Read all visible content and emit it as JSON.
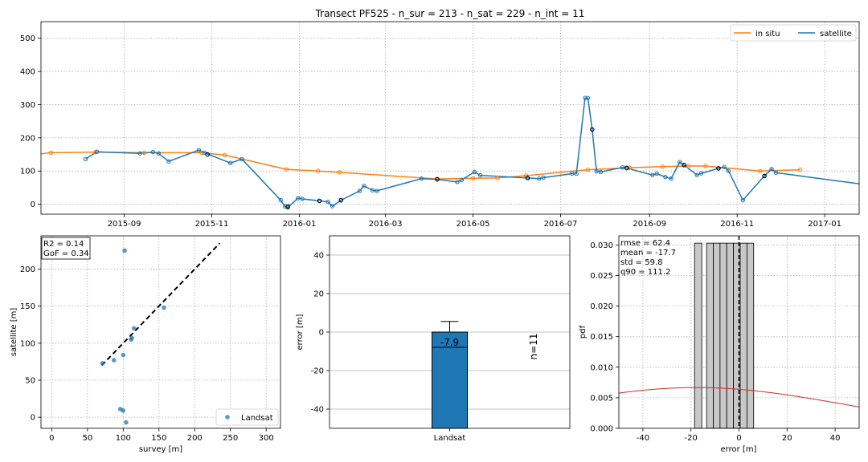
{
  "chart_data": [
    {
      "type": "line",
      "title": "Transect PF525 - n_sur = 213 - n_sat = 229 - n_int = 11",
      "xlabel": "",
      "ylabel": "",
      "x_ticks": [
        "2015-09",
        "2015-11",
        "2016-01",
        "2016-03",
        "2016-05",
        "2016-07",
        "2016-09",
        "2016-11",
        "2017-01"
      ],
      "x_range": [
        "2015-07-05",
        "2017-01-25"
      ],
      "y_range": [
        -30,
        550
      ],
      "y_ticks": [
        0,
        100,
        200,
        300,
        400,
        500
      ],
      "grid": true,
      "legend_position": "top-right",
      "series": [
        {
          "name": "in situ",
          "color": "#ff7f0e",
          "points": [
            [
              "2015-07-01",
              150
            ],
            [
              "2015-07-12",
              155
            ],
            [
              "2015-08-12",
              157
            ],
            [
              "2015-09-15",
              155
            ],
            [
              "2015-10-25",
              155
            ],
            [
              "2015-11-10",
              148
            ],
            [
              "2015-12-23",
              105
            ],
            [
              "2016-01-14",
              100
            ],
            [
              "2016-01-29",
              96
            ],
            [
              "2016-04-06",
              76
            ],
            [
              "2016-05-01",
              78
            ],
            [
              "2016-05-18",
              79
            ],
            [
              "2016-06-07",
              86
            ],
            [
              "2016-07-20",
              104
            ],
            [
              "2016-08-18",
              110
            ],
            [
              "2016-09-10",
              113
            ],
            [
              "2016-09-28",
              115
            ],
            [
              "2016-10-10",
              115
            ],
            [
              "2016-11-17",
              100
            ],
            [
              "2016-12-15",
              104
            ]
          ]
        },
        {
          "name": "satellite",
          "color": "#1f77b4",
          "points": [
            [
              "2015-08-05",
              136
            ],
            [
              "2015-08-13",
              158
            ],
            [
              "2015-09-12",
              153
            ],
            [
              "2015-09-21",
              157
            ],
            [
              "2015-09-25",
              153
            ],
            [
              "2015-10-02",
              129
            ],
            [
              "2015-10-23",
              163
            ],
            [
              "2015-10-27",
              155
            ],
            [
              "2015-11-14",
              124
            ],
            [
              "2015-11-22",
              136
            ],
            [
              "2015-12-19",
              12
            ],
            [
              "2015-12-22",
              -7
            ],
            [
              "2015-12-24",
              -10
            ],
            [
              "2015-12-31",
              18
            ],
            [
              "2016-01-03",
              16
            ],
            [
              "2016-01-15",
              10
            ],
            [
              "2016-01-21",
              7
            ],
            [
              "2016-01-24",
              -6
            ],
            [
              "2016-01-30",
              12
            ],
            [
              "2016-02-12",
              40
            ],
            [
              "2016-02-15",
              55
            ],
            [
              "2016-02-21",
              42
            ],
            [
              "2016-02-24",
              40
            ],
            [
              "2016-03-26",
              77
            ],
            [
              "2016-04-06",
              75
            ],
            [
              "2016-04-20",
              67
            ],
            [
              "2016-04-23",
              73
            ],
            [
              "2016-05-02",
              97
            ],
            [
              "2016-05-06",
              87
            ],
            [
              "2016-06-08",
              79
            ],
            [
              "2016-06-16",
              77
            ],
            [
              "2016-06-19",
              80
            ],
            [
              "2016-07-09",
              92
            ],
            [
              "2016-07-12",
              92
            ],
            [
              "2016-07-18",
              320
            ],
            [
              "2016-07-20",
              320
            ],
            [
              "2016-07-23",
              225
            ],
            [
              "2016-07-26",
              99
            ],
            [
              "2016-07-29",
              97
            ],
            [
              "2016-08-13",
              111
            ],
            [
              "2016-08-16",
              109
            ],
            [
              "2016-09-03",
              88
            ],
            [
              "2016-09-06",
              92
            ],
            [
              "2016-09-12",
              82
            ],
            [
              "2016-09-16",
              77
            ],
            [
              "2016-09-22",
              127
            ],
            [
              "2016-09-25",
              118
            ],
            [
              "2016-10-04",
              88
            ],
            [
              "2016-10-07",
              93
            ],
            [
              "2016-10-19",
              108
            ],
            [
              "2016-10-23",
              112
            ],
            [
              "2016-10-26",
              100
            ],
            [
              "2016-11-05",
              12
            ],
            [
              "2016-11-20",
              85
            ],
            [
              "2016-11-25",
              106
            ],
            [
              "2016-11-28",
              95
            ],
            [
              "2017-01-31",
              58
            ]
          ]
        }
      ],
      "intersect_points": [
        [
          "2015-10-29",
          150
        ],
        [
          "2015-12-24",
          -7
        ],
        [
          "2016-01-15",
          10
        ],
        [
          "2016-01-30",
          12
        ],
        [
          "2016-04-06",
          75
        ],
        [
          "2016-06-08",
          79
        ],
        [
          "2016-07-23",
          225
        ],
        [
          "2016-08-16",
          109
        ],
        [
          "2016-09-25",
          118
        ],
        [
          "2016-10-19",
          108
        ],
        [
          "2016-11-20",
          85
        ]
      ]
    },
    {
      "type": "scatter",
      "title": "",
      "xlabel": "survey [m]",
      "ylabel": "satellite [m]",
      "x_range": [
        -15,
        320
      ],
      "y_range": [
        -15,
        245
      ],
      "x_ticks": [
        0,
        50,
        100,
        150,
        200,
        250,
        300
      ],
      "y_ticks": [
        0,
        50,
        100,
        150,
        200
      ],
      "grid": true,
      "legend_position": "bottom-right",
      "annotation": [
        "R2 = 0.14",
        "GoF = 0.34"
      ],
      "series": [
        {
          "name": "Landsat",
          "color": "#1f77b4",
          "points": [
            [
              102,
              225
            ],
            [
              157,
              148
            ],
            [
              115,
              120
            ],
            [
              112,
              107
            ],
            [
              111,
              105
            ],
            [
              100,
              84
            ],
            [
              87,
              77
            ],
            [
              96,
              11
            ],
            [
              100,
              9
            ],
            [
              104,
              -7
            ],
            [
              71,
              73
            ]
          ]
        }
      ],
      "fit_line": [
        [
          70,
          70
        ],
        [
          235,
          235
        ]
      ]
    },
    {
      "type": "bar",
      "title": "",
      "xlabel": "",
      "ylabel": "error [m]",
      "categories": [
        "Landsat"
      ],
      "y_range": [
        -50,
        50
      ],
      "y_ticks": [
        -40,
        -20,
        0,
        20,
        40
      ],
      "grid": true,
      "box": {
        "q1": -50,
        "q3": 0,
        "median": -7.9,
        "whisker_high": 5.5
      },
      "median_label": "-7.9",
      "count_label": "n=11",
      "color": "#1f77b4"
    },
    {
      "type": "bar",
      "title": "",
      "xlabel": "error [m]",
      "ylabel": "pdf",
      "x_range": [
        -50,
        50
      ],
      "y_range": [
        0,
        0.0315
      ],
      "x_ticks": [
        -40,
        -20,
        0,
        20,
        40
      ],
      "y_ticks": [
        "0.000",
        "0.005",
        "0.010",
        "0.015",
        "0.020",
        "0.025",
        "0.030"
      ],
      "y_tick_values": [
        0,
        0.005,
        0.01,
        0.015,
        0.02,
        0.025,
        0.03
      ],
      "grid": true,
      "annotation": [
        "rmse = 62.4",
        "mean = -17.7",
        "std = 59.8",
        "q90 = 111.2"
      ],
      "histogram": {
        "bars": [
          [
            -18.5,
            -15.5,
            0.0303
          ],
          [
            -13.5,
            -10.7,
            0.0303
          ],
          [
            -10.7,
            -7.9,
            0.0303
          ],
          [
            -7.9,
            -5.1,
            0.0303
          ],
          [
            -5.1,
            -2.3,
            0.0303
          ],
          [
            -2.3,
            0.5,
            0.0303
          ],
          [
            0.5,
            3.3,
            0.0303
          ],
          [
            3.3,
            6.1,
            0.0303
          ]
        ],
        "color": "#c8c8c8"
      },
      "normal_pdf": {
        "mean": -17.7,
        "std": 59.8,
        "color": "#d62728"
      },
      "zero_line": 0
    }
  ]
}
